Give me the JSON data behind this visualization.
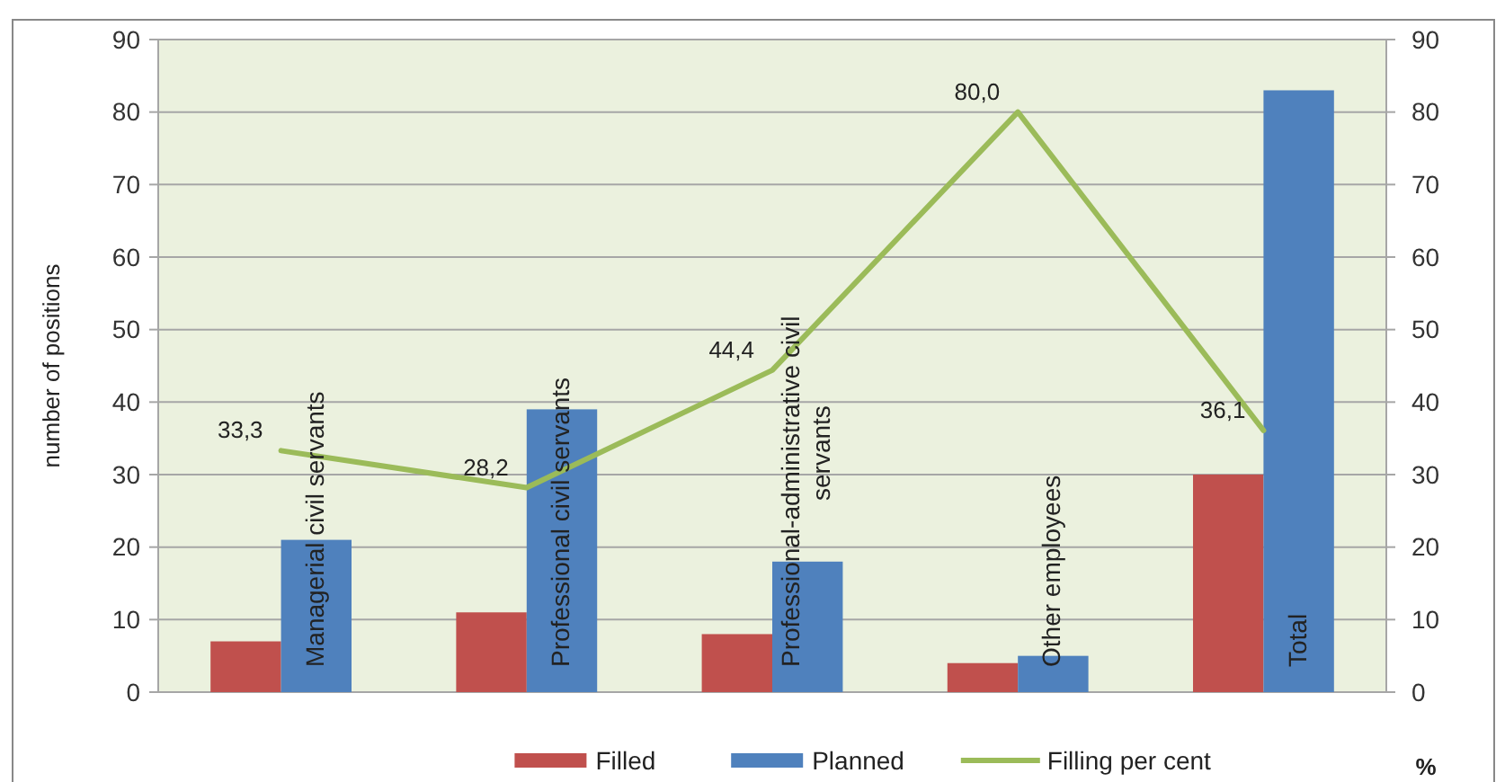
{
  "chart_data": {
    "type": "bar",
    "ylabel": "number of positions",
    "y2label": "%",
    "categories": [
      "Managerial civil servants",
      "Professional civil servants",
      "Professional-administrative civil servants",
      "Other employees",
      "Total"
    ],
    "series": [
      {
        "name": "Filled",
        "type": "bar",
        "color": "#c0504d",
        "values": [
          7,
          11,
          8,
          4,
          30
        ]
      },
      {
        "name": "Planned",
        "type": "bar",
        "color": "#4f81bd",
        "values": [
          21,
          39,
          18,
          5,
          83
        ]
      },
      {
        "name": "Filling per cent",
        "type": "line",
        "axis": "y2",
        "color": "#9bbb59",
        "values": [
          33.3,
          28.2,
          44.4,
          80.0,
          36.1
        ],
        "value_labels": [
          "33,3",
          "28,2",
          "44,4",
          "80,0",
          "36,1"
        ]
      }
    ],
    "ylim": [
      0,
      90
    ],
    "yticks": [
      0,
      10,
      20,
      30,
      40,
      50,
      60,
      70,
      80,
      90
    ],
    "y2lim": [
      0,
      90
    ],
    "y2ticks": [
      0,
      10,
      20,
      30,
      40,
      50,
      60,
      70,
      80,
      90
    ],
    "grid": "y",
    "legend": "bottom"
  }
}
